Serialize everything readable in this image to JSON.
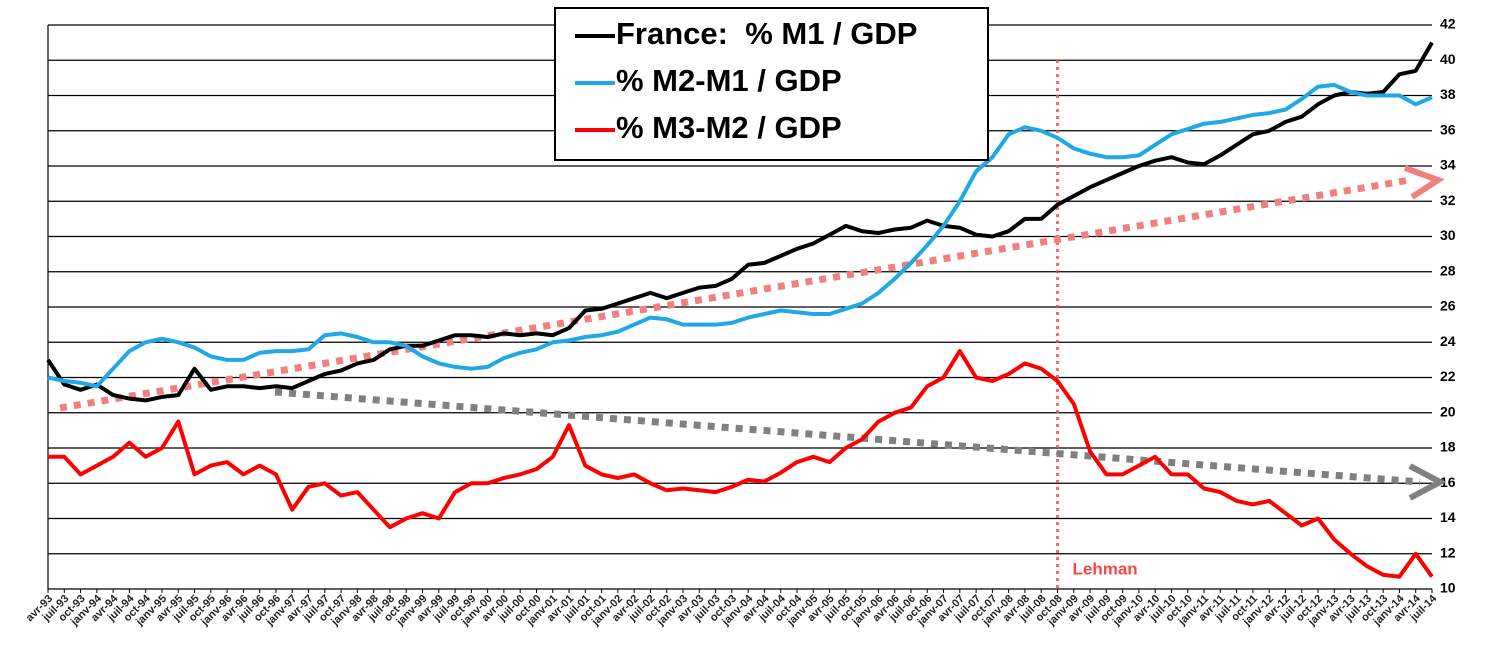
{
  "chart_data": {
    "type": "line",
    "categories": [
      "avr-93",
      "juil-93",
      "oct-93",
      "janv-94",
      "avr-94",
      "juil-94",
      "oct-94",
      "janv-95",
      "avr-95",
      "juil-95",
      "oct-95",
      "janv-96",
      "avr-96",
      "juil-96",
      "oct-96",
      "janv-97",
      "avr-97",
      "juil-97",
      "oct-97",
      "janv-98",
      "avr-98",
      "juil-98",
      "oct-98",
      "janv-99",
      "avr-99",
      "juil-99",
      "oct-99",
      "janv-00",
      "avr-00",
      "juil-00",
      "oct-00",
      "janv-01",
      "avr-01",
      "juil-01",
      "oct-01",
      "janv-02",
      "avr-02",
      "juil-02",
      "oct-02",
      "janv-03",
      "avr-03",
      "juil-03",
      "oct-03",
      "janv-04",
      "avr-04",
      "juil-04",
      "oct-04",
      "janv-05",
      "avr-05",
      "juil-05",
      "oct-05",
      "janv-06",
      "avr-06",
      "juil-06",
      "oct-06",
      "janv-07",
      "avr-07",
      "juil-07",
      "oct-07",
      "janv-08",
      "avr-08",
      "juil-08",
      "oct-08",
      "janv-09",
      "avr-09",
      "juil-09",
      "oct-09",
      "janv-10",
      "avr-10",
      "juil-10",
      "oct-10",
      "janv-11",
      "avr-11",
      "juil-11",
      "oct-11",
      "janv-12",
      "avr-12",
      "juil-12",
      "oct-12",
      "janv-13",
      "avr-13",
      "juil-13",
      "oct-13",
      "janv-14",
      "avr-14",
      "juil-14"
    ],
    "series": [
      {
        "name": "France:  % M1 / GDP",
        "color": "#000000",
        "values": [
          23,
          21.6,
          21.3,
          21.6,
          21,
          20.8,
          20.7,
          20.9,
          21,
          22.5,
          21.3,
          21.5,
          21.5,
          21.4,
          21.5,
          21.4,
          21.8,
          22.2,
          22.4,
          22.8,
          23,
          23.6,
          23.8,
          23.8,
          24.1,
          24.4,
          24.4,
          24.3,
          24.5,
          24.4,
          24.5,
          24.4,
          24.8,
          25.8,
          25.9,
          26.2,
          26.5,
          26.8,
          26.5,
          26.8,
          27.1,
          27.2,
          27.6,
          28.4,
          28.5,
          28.9,
          29.3,
          29.6,
          30.1,
          30.6,
          30.3,
          30.2,
          30.4,
          30.5,
          30.9,
          30.6,
          30.5,
          30.1,
          30,
          30.3,
          31,
          31,
          31.8,
          32.3,
          32.8,
          33.2,
          33.6,
          34,
          34.3,
          34.5,
          34.2,
          34.1,
          34.6,
          35.2,
          35.8,
          36,
          36.5,
          36.8,
          37.5,
          38,
          38.2,
          38.1,
          38.2,
          39.2,
          39.4,
          41
        ]
      },
      {
        "name": "% M2-M1 / GDP",
        "color": "#1ea8e6",
        "values": [
          22,
          21.8,
          21.7,
          21.5,
          22.5,
          23.5,
          24,
          24.2,
          24,
          23.7,
          23.2,
          23,
          23,
          23.4,
          23.5,
          23.5,
          23.6,
          24.4,
          24.5,
          24.3,
          24,
          24,
          23.8,
          23.2,
          22.8,
          22.6,
          22.5,
          22.6,
          23.1,
          23.4,
          23.6,
          24,
          24.1,
          24.3,
          24.4,
          24.6,
          25,
          25.4,
          25.3,
          25,
          25,
          25,
          25.1,
          25.4,
          25.6,
          25.8,
          25.7,
          25.6,
          25.6,
          25.9,
          26.2,
          26.8,
          27.6,
          28.5,
          29.5,
          30.6,
          32,
          33.7,
          34.5,
          35.8,
          36.2,
          36,
          35.6,
          35,
          34.7,
          34.5,
          34.5,
          34.6,
          35.2,
          35.8,
          36.1,
          36.4,
          36.5,
          36.7,
          36.9,
          37,
          37.2,
          37.8,
          38.5,
          38.6,
          38.2,
          38,
          38,
          38,
          37.5,
          37.9
        ]
      },
      {
        "name": "% M3-M2 / GDP",
        "color": "#ff0000",
        "values": [
          17.5,
          17.5,
          16.5,
          17,
          17.5,
          18.3,
          17.5,
          18,
          19.5,
          16.5,
          17,
          17.2,
          16.5,
          17,
          16.5,
          14.5,
          15.8,
          16,
          15.3,
          15.5,
          14.5,
          13.5,
          14,
          14.3,
          14,
          15.5,
          16,
          16,
          16.3,
          16.5,
          16.8,
          17.5,
          19.3,
          17,
          16.5,
          16.3,
          16.5,
          16,
          15.6,
          15.7,
          15.6,
          15.5,
          15.8,
          16.2,
          16.1,
          16.6,
          17.2,
          17.5,
          17.2,
          18,
          18.5,
          19.5,
          20,
          20.3,
          21.5,
          22,
          23.5,
          22,
          21.8,
          22.2,
          22.8,
          22.5,
          21.8,
          20.5,
          17.8,
          16.5,
          16.5,
          17,
          17.5,
          16.5,
          16.5,
          15.7,
          15.5,
          15,
          14.8,
          15,
          14.3,
          13.6,
          14,
          12.8,
          12,
          11.3,
          10.8,
          10.7,
          12,
          10.7
        ]
      }
    ],
    "ylim": [
      10,
      42
    ],
    "yticks": [
      10,
      12,
      14,
      16,
      18,
      20,
      22,
      24,
      26,
      28,
      30,
      32,
      34,
      36,
      38,
      40,
      42
    ],
    "grid": true,
    "annotations": [
      {
        "text": "Lehman",
        "x": "oct-08",
        "color": "#ff4444"
      }
    ]
  }
}
